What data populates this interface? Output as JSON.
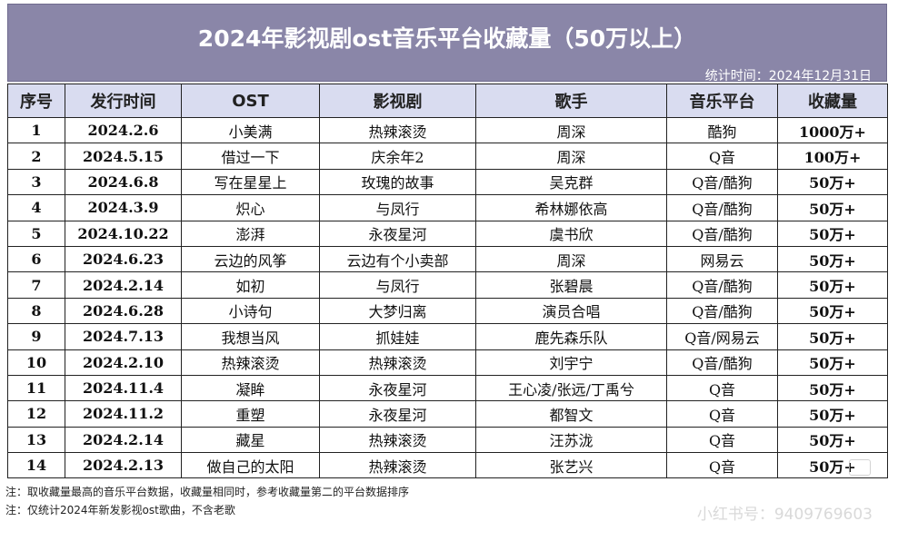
{
  "title": "2024年影视剧ost音乐平台收藏量（50万以上）",
  "stat_time": "统计时间：2024年12月31日",
  "columns": [
    "序号",
    "发行时间",
    "OST",
    "影视剧",
    "歌手",
    "音乐平台",
    "收藏量"
  ],
  "rows": [
    {
      "num": "1",
      "date": "2024.2.6",
      "song": "小美满",
      "drama": "热辣滚烫",
      "singer": "周深",
      "platform": "酷狗",
      "count": "1000万+"
    },
    {
      "num": "2",
      "date": "2024.5.15",
      "song": "借过一下",
      "drama": "庆余年2",
      "singer": "周深",
      "platform": "Q音",
      "count": "100万+"
    },
    {
      "num": "3",
      "date": "2024.6.8",
      "song": "写在星星上",
      "drama": "玫瑰的故事",
      "singer": "吴克群",
      "platform": "Q音/酷狗",
      "count": "50万+"
    },
    {
      "num": "4",
      "date": "2024.3.9",
      "song": "炽心",
      "drama": "与凤行",
      "singer": "希林娜依高",
      "platform": "Q音/酷狗",
      "count": "50万+"
    },
    {
      "num": "5",
      "date": "2024.10.22",
      "song": "澎湃",
      "drama": "永夜星河",
      "singer": "虞书欣",
      "platform": "Q音/酷狗",
      "count": "50万+"
    },
    {
      "num": "6",
      "date": "2024.6.23",
      "song": "云边的风筝",
      "drama": "云边有个小卖部",
      "singer": "周深",
      "platform": "网易云",
      "count": "50万+"
    },
    {
      "num": "7",
      "date": "2024.2.14",
      "song": "如初",
      "drama": "与凤行",
      "singer": "张碧晨",
      "platform": "Q音/酷狗",
      "count": "50万+"
    },
    {
      "num": "8",
      "date": "2024.6.28",
      "song": "小诗句",
      "drama": "大梦归离",
      "singer": "演员合唱",
      "platform": "Q音/酷狗",
      "count": "50万+"
    },
    {
      "num": "9",
      "date": "2024.7.13",
      "song": "我想当风",
      "drama": "抓娃娃",
      "singer": "鹿先森乐队",
      "platform": "Q音/网易云",
      "count": "50万+"
    },
    {
      "num": "10",
      "date": "2024.2.10",
      "song": "热辣滚烫",
      "drama": "热辣滚烫",
      "singer": "刘宇宁",
      "platform": "Q音/酷狗",
      "count": "50万+"
    },
    {
      "num": "11",
      "date": "2024.11.4",
      "song": "凝眸",
      "drama": "永夜星河",
      "singer": "王心凌/张远/丁禹兮",
      "platform": "Q音",
      "count": "50万+"
    },
    {
      "num": "12",
      "date": "2024.11.2",
      "song": "重塑",
      "drama": "永夜星河",
      "singer": "都智文",
      "platform": "Q音",
      "count": "50万+"
    },
    {
      "num": "13",
      "date": "2024.2.14",
      "song": "藏星",
      "drama": "热辣滚烫",
      "singer": "汪苏泷",
      "platform": "Q音",
      "count": "50万+"
    },
    {
      "num": "14",
      "date": "2024.2.13",
      "song": "做自己的太阳",
      "drama": "热辣滚烫",
      "singer": "张艺兴",
      "platform": "Q音",
      "count": "50万+"
    }
  ],
  "notes": [
    "注：取收藏量最高的音乐平台数据，收藏量相同时，参考收藏量第二的平台数据排序",
    "注：仅统计2024年新发影视ost歌曲，不含老歌"
  ],
  "watermark": "小红书号：9409769603"
}
